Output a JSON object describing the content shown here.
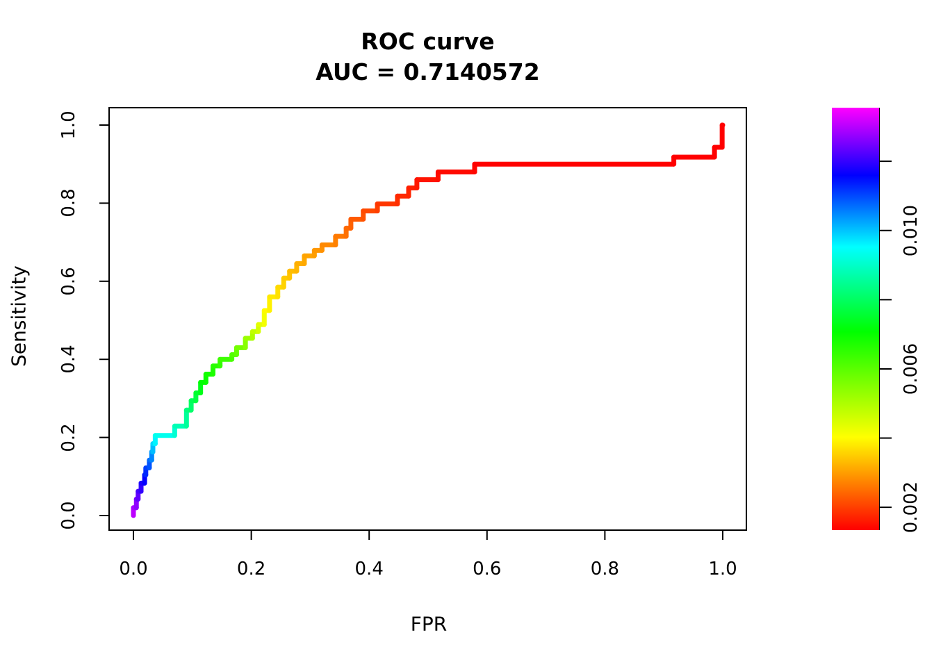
{
  "chart_data": {
    "type": "line",
    "subtype": "roc-step-curve-colored-by-threshold",
    "title": "ROC curve",
    "subtitle": "AUC = 0.7140572",
    "auc": 0.7140572,
    "xlabel": "FPR",
    "ylabel": "Sensitivity",
    "xlim": [
      0.0,
      1.0
    ],
    "ylim": [
      0.0,
      1.0
    ],
    "grid": false,
    "x_ticks": [
      {
        "value": 0.0,
        "label": "0.0"
      },
      {
        "value": 0.2,
        "label": "0.2"
      },
      {
        "value": 0.4,
        "label": "0.4"
      },
      {
        "value": 0.6,
        "label": "0.6"
      },
      {
        "value": 0.8,
        "label": "0.8"
      },
      {
        "value": 1.0,
        "label": "1.0"
      }
    ],
    "y_ticks": [
      {
        "value": 0.0,
        "label": "0.0"
      },
      {
        "value": 0.2,
        "label": "0.2"
      },
      {
        "value": 0.4,
        "label": "0.4"
      },
      {
        "value": 0.6,
        "label": "0.6"
      },
      {
        "value": 0.8,
        "label": "0.8"
      },
      {
        "value": 1.0,
        "label": "1.0"
      }
    ],
    "roc_points": [
      [
        0.0,
        0.0
      ],
      [
        0.0,
        0.02
      ],
      [
        0.005,
        0.02
      ],
      [
        0.005,
        0.042
      ],
      [
        0.008,
        0.042
      ],
      [
        0.008,
        0.062
      ],
      [
        0.013,
        0.062
      ],
      [
        0.013,
        0.083
      ],
      [
        0.019,
        0.083
      ],
      [
        0.019,
        0.104
      ],
      [
        0.021,
        0.104
      ],
      [
        0.021,
        0.122
      ],
      [
        0.027,
        0.122
      ],
      [
        0.027,
        0.142
      ],
      [
        0.031,
        0.142
      ],
      [
        0.031,
        0.163
      ],
      [
        0.033,
        0.163
      ],
      [
        0.033,
        0.184
      ],
      [
        0.037,
        0.184
      ],
      [
        0.037,
        0.205
      ],
      [
        0.07,
        0.205
      ],
      [
        0.07,
        0.229
      ],
      [
        0.09,
        0.229
      ],
      [
        0.09,
        0.27
      ],
      [
        0.098,
        0.27
      ],
      [
        0.098,
        0.294
      ],
      [
        0.106,
        0.294
      ],
      [
        0.106,
        0.314
      ],
      [
        0.114,
        0.314
      ],
      [
        0.114,
        0.341
      ],
      [
        0.123,
        0.341
      ],
      [
        0.123,
        0.362
      ],
      [
        0.135,
        0.362
      ],
      [
        0.135,
        0.383
      ],
      [
        0.147,
        0.383
      ],
      [
        0.147,
        0.4
      ],
      [
        0.167,
        0.4
      ],
      [
        0.167,
        0.412
      ],
      [
        0.175,
        0.412
      ],
      [
        0.175,
        0.43
      ],
      [
        0.19,
        0.43
      ],
      [
        0.19,
        0.454
      ],
      [
        0.202,
        0.454
      ],
      [
        0.202,
        0.471
      ],
      [
        0.212,
        0.471
      ],
      [
        0.212,
        0.489
      ],
      [
        0.222,
        0.489
      ],
      [
        0.222,
        0.525
      ],
      [
        0.231,
        0.525
      ],
      [
        0.231,
        0.56
      ],
      [
        0.245,
        0.56
      ],
      [
        0.245,
        0.585
      ],
      [
        0.255,
        0.585
      ],
      [
        0.255,
        0.608
      ],
      [
        0.265,
        0.608
      ],
      [
        0.265,
        0.626
      ],
      [
        0.277,
        0.626
      ],
      [
        0.277,
        0.645
      ],
      [
        0.29,
        0.645
      ],
      [
        0.29,
        0.665
      ],
      [
        0.307,
        0.665
      ],
      [
        0.307,
        0.679
      ],
      [
        0.32,
        0.679
      ],
      [
        0.32,
        0.693
      ],
      [
        0.343,
        0.693
      ],
      [
        0.343,
        0.715
      ],
      [
        0.361,
        0.715
      ],
      [
        0.361,
        0.736
      ],
      [
        0.369,
        0.736
      ],
      [
        0.369,
        0.759
      ],
      [
        0.39,
        0.759
      ],
      [
        0.39,
        0.78
      ],
      [
        0.414,
        0.78
      ],
      [
        0.414,
        0.798
      ],
      [
        0.448,
        0.798
      ],
      [
        0.448,
        0.818
      ],
      [
        0.467,
        0.818
      ],
      [
        0.467,
        0.839
      ],
      [
        0.481,
        0.839
      ],
      [
        0.481,
        0.86
      ],
      [
        0.517,
        0.86
      ],
      [
        0.517,
        0.88
      ],
      [
        0.579,
        0.88
      ],
      [
        0.579,
        0.9
      ],
      [
        0.917,
        0.9
      ],
      [
        0.917,
        0.918
      ],
      [
        0.986,
        0.918
      ],
      [
        0.986,
        0.943
      ],
      [
        0.999,
        0.943
      ],
      [
        0.999,
        1.0
      ],
      [
        1.0,
        1.0
      ]
    ],
    "curve_color_map": {
      "type": "hsl-hue-piecewise",
      "saturation": "100%",
      "lightness": "50%",
      "stops_t_hue": [
        [
          0.0,
          287
        ],
        [
          0.08,
          248
        ],
        [
          0.15,
          215
        ],
        [
          0.21,
          180
        ],
        [
          0.26,
          150
        ],
        [
          0.33,
          120
        ],
        [
          0.42,
          100
        ],
        [
          0.49,
          72
        ],
        [
          0.53,
          58
        ],
        [
          0.58,
          50
        ],
        [
          0.64,
          41
        ],
        [
          0.69,
          35
        ],
        [
          0.73,
          28
        ],
        [
          0.78,
          20
        ],
        [
          0.82,
          12
        ],
        [
          0.89,
          4
        ],
        [
          0.93,
          0
        ],
        [
          1.0,
          0
        ]
      ]
    },
    "colorbar": {
      "orientation": "vertical",
      "value_top": 0.01355,
      "value_bottom": 0.00134,
      "ticks": [
        {
          "value": 0.012,
          "label": ""
        },
        {
          "value": 0.01,
          "label": "0.010"
        },
        {
          "value": 0.008,
          "label": ""
        },
        {
          "value": 0.006,
          "label": "0.006"
        },
        {
          "value": 0.004,
          "label": ""
        },
        {
          "value": 0.002,
          "label": "0.002"
        }
      ],
      "gradient_top_to_bottom": [
        [
          0.0,
          "#ff00ff"
        ],
        [
          0.16,
          "#0000ff"
        ],
        [
          0.33,
          "#00ffff"
        ],
        [
          0.53,
          "#00ff00"
        ],
        [
          0.78,
          "#ffff00"
        ],
        [
          1.0,
          "#ff0000"
        ]
      ]
    },
    "colors": {
      "foreground": "#000000",
      "background": "#ffffff",
      "curve_start": "#9b00e8",
      "curve_end": "#ff0000"
    }
  }
}
